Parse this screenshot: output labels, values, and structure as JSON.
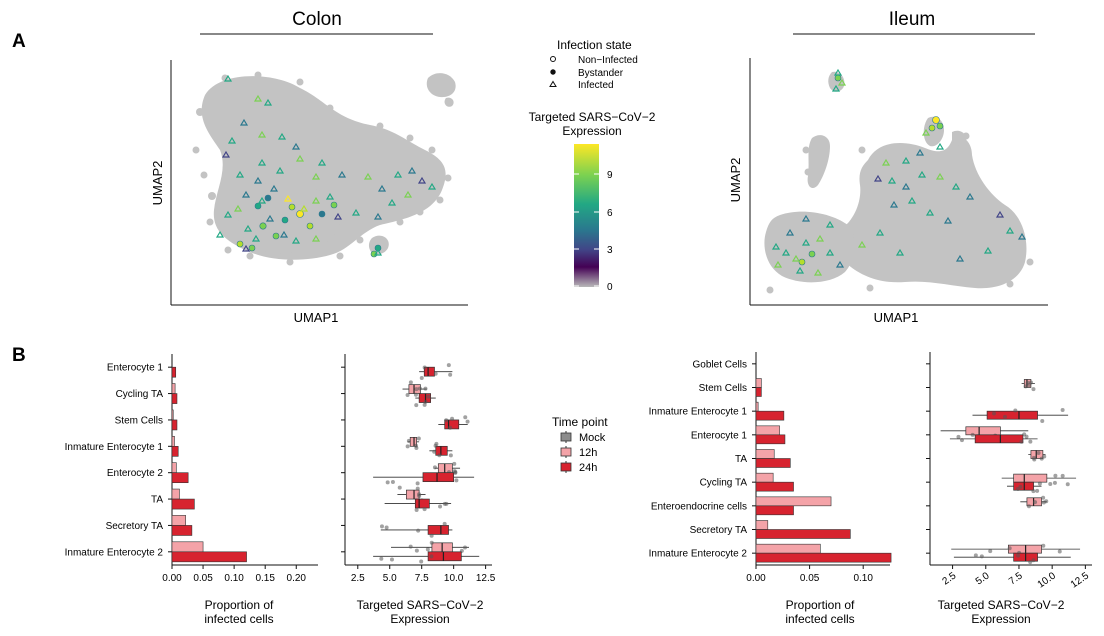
{
  "panel_labels": {
    "a": "A",
    "b": "B"
  },
  "titles": {
    "colon": "Colon",
    "ileum": "Ileum"
  },
  "umap": {
    "xlabel": "UMAP1",
    "ylabel": "UMAP2"
  },
  "legend": {
    "infection_title": "Infection state",
    "infection_items": [
      "Non−Infected",
      "Bystander",
      "Infected"
    ],
    "expression_title_1": "Targeted SARS−CoV−2",
    "expression_title_2": "Expression",
    "expression_ticks": [
      "9",
      "6",
      "3",
      "0"
    ],
    "time_title": "Time point",
    "time_items": [
      "Mock",
      "12h",
      "24h"
    ]
  },
  "colors": {
    "mock": "#8c8c8c",
    "h12": "#f4a3a8",
    "h24": "#d7232f",
    "umap_gray": "#c3c3c3",
    "gradient": [
      "#fde725",
      "#7ad151",
      "#22a884",
      "#2a788e",
      "#414487",
      "#440154",
      "#b8b8b8"
    ]
  },
  "prop_axis": {
    "xlabel_1": "Proportion of",
    "xlabel_2": "infected cells"
  },
  "expr_axis": {
    "xlabel_1": "Targeted SARS−CoV−2",
    "xlabel_2": "Expression"
  },
  "chart_data": [
    {
      "id": "colon-proportion",
      "type": "bar",
      "title": "Colon",
      "categories": [
        "Enterocyte 1",
        "Cycling TA",
        "Stem Cells",
        "Inmature Enterocyte 1",
        "Enterocyte 2",
        "TA",
        "Secretory TA",
        "Inmature Enterocyte 2"
      ],
      "series": [
        {
          "name": "12h",
          "values": [
            0.0,
            0.005,
            0.002,
            0.004,
            0.007,
            0.012,
            0.022,
            0.05
          ]
        },
        {
          "name": "24h",
          "values": [
            0.006,
            0.008,
            0.008,
            0.01,
            0.026,
            0.036,
            0.032,
            0.12
          ]
        }
      ],
      "xlim": [
        0,
        0.235
      ],
      "ticks": [
        0.0,
        0.05,
        0.1,
        0.15,
        0.2
      ],
      "tick_labels": [
        "0.00",
        "0.05",
        "0.10",
        "0.15",
        "0.20"
      ],
      "xlabel": "Proportion of infected cells"
    },
    {
      "id": "colon-expression",
      "type": "box",
      "categories": [
        "Enterocyte 1",
        "Cycling TA",
        "Stem Cells",
        "Inmature Enterocyte 1",
        "Enterocyte 2",
        "TA",
        "Secretory TA",
        "Inmature Enterocyte 2"
      ],
      "series": [
        {
          "name": "12h",
          "boxes": [
            null,
            [
              6.0,
              6.5,
              6.9,
              7.4,
              7.9
            ],
            null,
            [
              6.4,
              6.6,
              6.9,
              7.1,
              7.3
            ],
            [
              8.5,
              8.8,
              9.3,
              9.9,
              10.5
            ],
            [
              5.6,
              6.3,
              6.9,
              7.3,
              7.8
            ],
            null,
            [
              5.1,
              8.3,
              9.1,
              9.9,
              11.2
            ]
          ]
        },
        {
          "name": "24h",
          "boxes": [
            [
              7.3,
              7.7,
              8.0,
              8.5,
              9.9
            ],
            [
              7.0,
              7.3,
              7.8,
              8.2,
              8.6
            ],
            [
              8.8,
              9.3,
              9.6,
              10.4,
              11.1
            ],
            [
              8.1,
              8.6,
              9.0,
              9.5,
              9.9
            ],
            [
              3.7,
              7.6,
              8.7,
              10.0,
              11.6
            ],
            [
              4.6,
              7.0,
              7.3,
              8.1,
              9.8
            ],
            [
              4.3,
              8.0,
              9.0,
              9.6,
              9.9
            ],
            [
              3.7,
              8.0,
              9.2,
              10.6,
              12.0
            ]
          ]
        }
      ],
      "xlim": [
        1.5,
        13.0
      ],
      "ticks": [
        2.5,
        5.0,
        7.5,
        10.0,
        12.5
      ],
      "tick_labels": [
        "2.5",
        "5.0",
        "7.5",
        "10.0",
        "12.5"
      ],
      "xlabel": "Targeted SARS−CoV−2 Expression"
    },
    {
      "id": "ileum-proportion",
      "type": "bar",
      "title": "Ileum",
      "categories": [
        "Goblet Cells",
        "Stem Cells",
        "Inmature Enterocyte 1",
        "Enterocyte 1",
        "TA",
        "Cycling TA",
        "Enteroendocrine cells",
        "Secretory TA",
        "Inmature Enterocyte 2"
      ],
      "series": [
        {
          "name": "12h",
          "values": [
            0.0,
            0.005,
            0.002,
            0.022,
            0.017,
            0.016,
            0.07,
            0.011,
            0.06
          ]
        },
        {
          "name": "24h",
          "values": [
            0.0,
            0.005,
            0.026,
            0.027,
            0.032,
            0.035,
            0.035,
            0.088,
            0.126
          ]
        }
      ],
      "xlim": [
        0,
        0.125
      ],
      "ticks": [
        0.0,
        0.05,
        0.1
      ],
      "tick_labels": [
        "0.00",
        "0.05",
        "0.10"
      ],
      "xlabel": "Proportion of infected cells"
    },
    {
      "id": "ileum-expression",
      "type": "box",
      "categories": [
        "Goblet Cells",
        "Stem Cells",
        "Inmature Enterocyte 1",
        "Enterocyte 1",
        "TA",
        "Cycling TA",
        "Enteroendocrine cells",
        "Secretory TA",
        "Inmature Enterocyte 2"
      ],
      "series": [
        {
          "name": "12h",
          "boxes": [
            null,
            [
              7.7,
              7.9,
              8.1,
              8.4,
              8.7
            ],
            null,
            [
              1.6,
              3.5,
              4.5,
              6.1,
              8.2
            ],
            [
              8.2,
              8.4,
              8.8,
              9.3,
              9.5
            ],
            [
              6.2,
              7.1,
              7.9,
              9.6,
              11.8
            ],
            [
              7.6,
              8.1,
              8.6,
              9.2,
              9.6
            ],
            null,
            [
              2.4,
              6.7,
              8.0,
              9.2,
              12.1
            ]
          ]
        },
        {
          "name": "24h",
          "boxes": [
            null,
            null,
            [
              4.0,
              5.1,
              7.5,
              8.9,
              11.2
            ],
            [
              2.3,
              4.2,
              6.1,
              7.8,
              8.9
            ],
            null,
            [
              6.6,
              7.1,
              7.9,
              8.6,
              9.2
            ],
            null,
            null,
            [
              2.6,
              7.1,
              8.0,
              8.9,
              11.4
            ]
          ]
        }
      ],
      "xlim": [
        0.8,
        13.0
      ],
      "ticks": [
        2.5,
        5.0,
        7.5,
        10.0,
        12.5
      ],
      "tick_labels": [
        "2.5",
        "5.0",
        "7.5",
        "10.0",
        "12.5"
      ],
      "xlabel": "Targeted SARS−CoV−2 Expression"
    }
  ]
}
